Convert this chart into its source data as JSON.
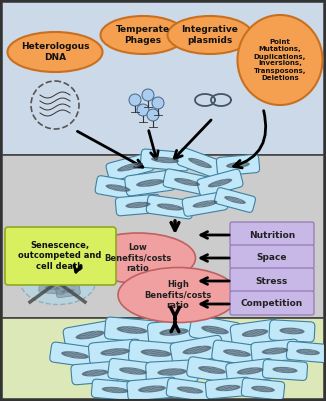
{
  "bg_top": "#ccd9e8",
  "bg_mid": "#cccccc",
  "bg_bot": "#dce8b8",
  "border_color": "#444444",
  "orange_ellipse": "#f5a050",
  "orange_ellipse_edge": "#c87020",
  "pink_ellipse": "#f0a0a0",
  "pink_ellipse_edge": "#c06060",
  "yellow_box": "#d8f060",
  "yellow_box_edge": "#90a820",
  "purple_box": "#c8b8e8",
  "purple_box_edge": "#9070b0",
  "bacteria_fill": "#c0e8f8",
  "bacteria_edge": "#4080a0",
  "bacteria_inner_fill": "#303840",
  "bacteria_highlight": "#e8f8ff",
  "dead_fill": "#b0d8e8",
  "dead_edge": "#6090a8",
  "arrow_color": "#111111",
  "text_color": "#111111",
  "label_top": [
    "Heterologous\nDNA",
    "Temperate\nPhages",
    "Integrative\nplasmids",
    "Point\nMutations,\nDuplications,\nInversions,\nTransposons,\nDeletions"
  ],
  "label_mid_left": "Senescence,\noutcompeted and\ncell death",
  "label_low": "Low\nBenefits/costs\nratio",
  "label_high": "High\nBenefits/costs\nratio",
  "label_right": [
    "Nutrition",
    "Space",
    "Stress",
    "Competition"
  ]
}
